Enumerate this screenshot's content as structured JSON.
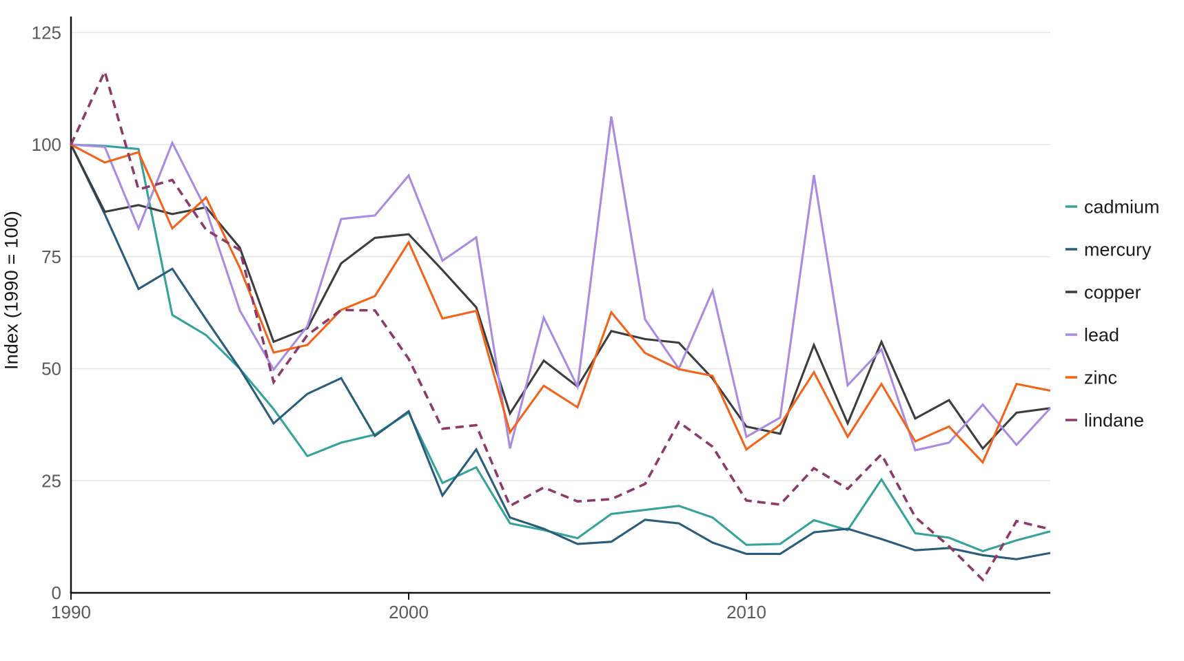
{
  "chart_data": {
    "type": "line",
    "title": "",
    "ylabel": "Index (1990 = 100)",
    "xlabel": "",
    "x": [
      1990,
      1991,
      1992,
      1993,
      1994,
      1995,
      1996,
      1997,
      1998,
      1999,
      2000,
      2001,
      2002,
      2003,
      2004,
      2005,
      2006,
      2007,
      2008,
      2009,
      2010,
      2011,
      2012,
      2013,
      2014,
      2015,
      2016,
      2017,
      2018,
      2019
    ],
    "xticks": [
      1990,
      2000,
      2010
    ],
    "yticks": [
      0,
      25,
      50,
      75,
      100,
      125
    ],
    "xlim": [
      1990,
      2019
    ],
    "ylim": [
      0,
      125
    ],
    "grid": "horizontal-only",
    "legend_position": "right",
    "series": [
      {
        "name": "cadmium",
        "color": "#36a39a",
        "dashed": false,
        "values": [
          100,
          99.7,
          99,
          62,
          57.5,
          50,
          41,
          30.5,
          33.5,
          35.3,
          40.2,
          24.5,
          28,
          15.5,
          14,
          12.2,
          17.6,
          18.5,
          19.4,
          16.8,
          10.7,
          10.9,
          16.2,
          14,
          25.3,
          13.3,
          12.3,
          9.3,
          11.7,
          13.7
        ]
      },
      {
        "name": "mercury",
        "color": "#2a5d7c",
        "dashed": false,
        "values": [
          100,
          84.5,
          67.8,
          72.3,
          61,
          50,
          37.8,
          44.4,
          47.9,
          35,
          40.5,
          21.7,
          32,
          16.8,
          14.3,
          10.9,
          11.4,
          16.3,
          15.5,
          11.2,
          8.7,
          8.7,
          13.5,
          14.3,
          12,
          9.5,
          10,
          8.4,
          7.5,
          8.9
        ]
      },
      {
        "name": "copper",
        "color": "#3d3d3d",
        "dashed": false,
        "values": [
          100,
          85,
          86.5,
          84.5,
          86,
          77,
          56,
          59,
          73.5,
          79.2,
          80,
          72,
          63.7,
          40,
          51.8,
          46,
          58.4,
          56.6,
          55.8,
          47.8,
          37.1,
          35.5,
          55.3,
          37.8,
          56,
          38.9,
          43,
          32.2,
          40.2,
          41.2
        ]
      },
      {
        "name": "lead",
        "color": "#a98ce2",
        "dashed": false,
        "values": [
          100,
          99.5,
          81.3,
          100.4,
          85.5,
          63,
          49.8,
          59.5,
          83.4,
          84.2,
          93.1,
          74.1,
          79.3,
          32.2,
          61.4,
          46,
          106.3,
          61,
          50,
          67.4,
          34.8,
          39.1,
          93.2,
          46.3,
          54.3,
          31.8,
          33.5,
          42,
          33,
          41.2
        ]
      },
      {
        "name": "zinc",
        "color": "#f2641c",
        "dashed": false,
        "values": [
          100,
          96,
          98.3,
          81.3,
          88.2,
          72.5,
          53.6,
          55.3,
          63.1,
          66.2,
          78.2,
          61.2,
          62.9,
          35.8,
          46.2,
          41.4,
          62.6,
          53.5,
          49.9,
          48.4,
          32,
          37.5,
          49.2,
          34.8,
          46.6,
          33.8,
          37.1,
          29.1,
          46.6,
          45.1
        ]
      },
      {
        "name": "lindane",
        "color": "#8c3a68",
        "dashed": true,
        "values": [
          100,
          116.3,
          90,
          92.1,
          81,
          76.5,
          47,
          57.5,
          63.1,
          63,
          52.2,
          36.6,
          37.4,
          19.4,
          23.5,
          20.4,
          20.9,
          24.3,
          38.1,
          32.6,
          20.6,
          19.7,
          27.8,
          23.2,
          30.9,
          16.9,
          10.4,
          2.9,
          16,
          14.2
        ]
      }
    ]
  },
  "style_colors": {
    "grid": "#e8e8e8",
    "axis": "#111111",
    "tick_text": "#5a5a5a",
    "legend_text": "#1c1c1c"
  }
}
